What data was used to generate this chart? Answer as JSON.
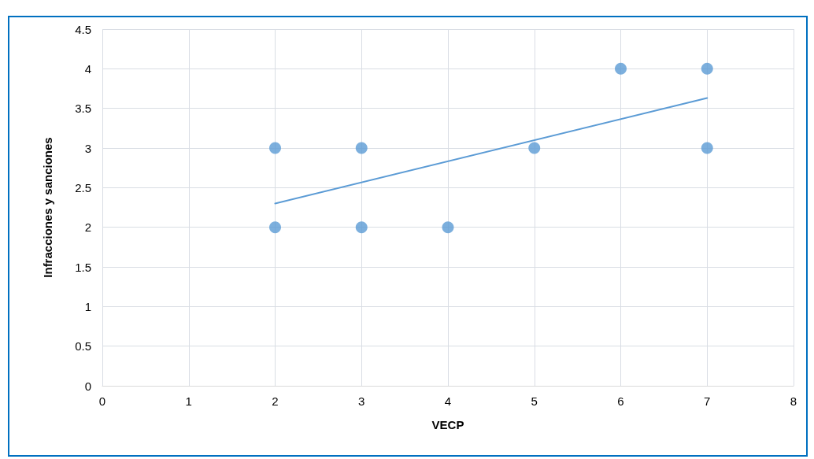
{
  "chart_data": {
    "type": "scatter",
    "xlabel": "VECP",
    "ylabel": "Infracciones y sanciones",
    "series": [
      {
        "color": "#5b9bd5",
        "x": [
          2,
          2,
          3,
          3,
          4,
          5,
          6,
          7,
          7
        ],
        "values": [
          3,
          2,
          3,
          2,
          2,
          3,
          4,
          4,
          3
        ],
        "marker": "circle"
      },
      {
        "type": "line",
        "color": "#5b9bd5",
        "x": [
          2,
          7
        ],
        "values": [
          2.3,
          3.63
        ],
        "marker": "none",
        "line_style": "solid"
      }
    ],
    "xlim": [
      0,
      8
    ],
    "xticks": [
      0,
      1,
      2,
      3,
      4,
      5,
      6,
      7,
      8
    ],
    "ylim": [
      0,
      4.5
    ],
    "yticks": [
      0,
      0.5,
      1,
      1.5,
      2,
      2.5,
      3,
      3.5,
      4,
      4.5
    ],
    "grid": true
  }
}
